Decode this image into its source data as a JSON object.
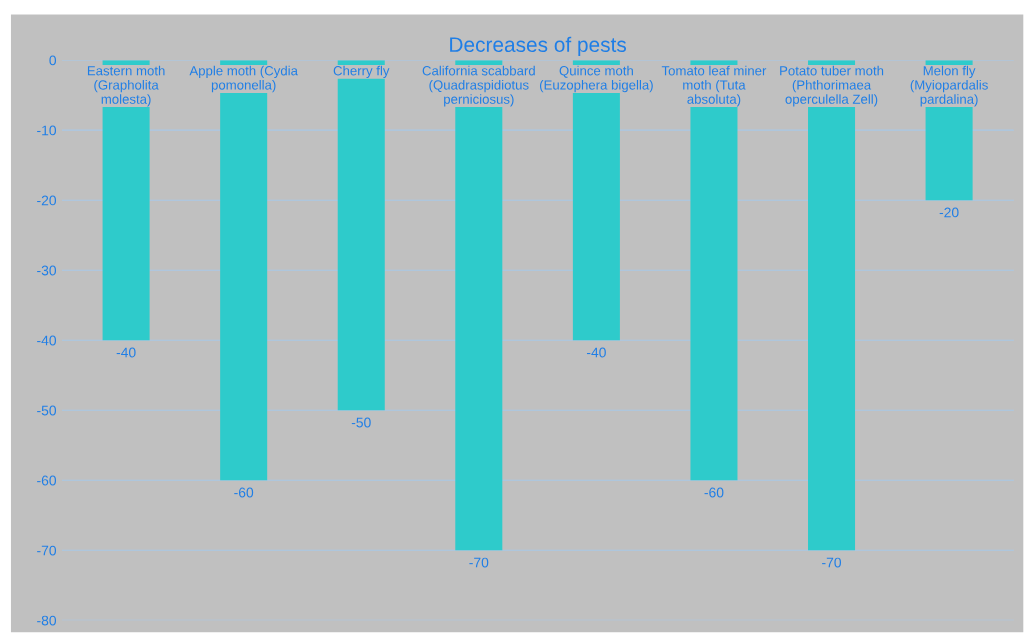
{
  "chart_data": {
    "type": "bar",
    "title": "Decreases of pests",
    "categories": [
      "Eastern moth\n(Grapholita\nmolesta)",
      "Apple moth (Cydia\npomonella)",
      "Cherry fly",
      "California scabbard\n(Quadraspidiotus\nperniciosus)",
      "Quince moth\n(Euzophera bigella)",
      "Tomato leaf miner\nmoth (Tuta\nabsoluta)",
      "Potato tuber moth\n(Phthorimaea\noperculella Zell)",
      "Melon fly\n(Myiopardalis\npardalina)"
    ],
    "values": [
      -40,
      -60,
      -50,
      -70,
      -40,
      -60,
      -70,
      -20
    ],
    "color": "#2ecbcb",
    "ylim": [
      -80,
      0
    ],
    "yticks": [
      -80,
      -70,
      -60,
      -50,
      -40,
      -30,
      -20,
      -10,
      0
    ],
    "grid": "y",
    "data_labels": true
  }
}
